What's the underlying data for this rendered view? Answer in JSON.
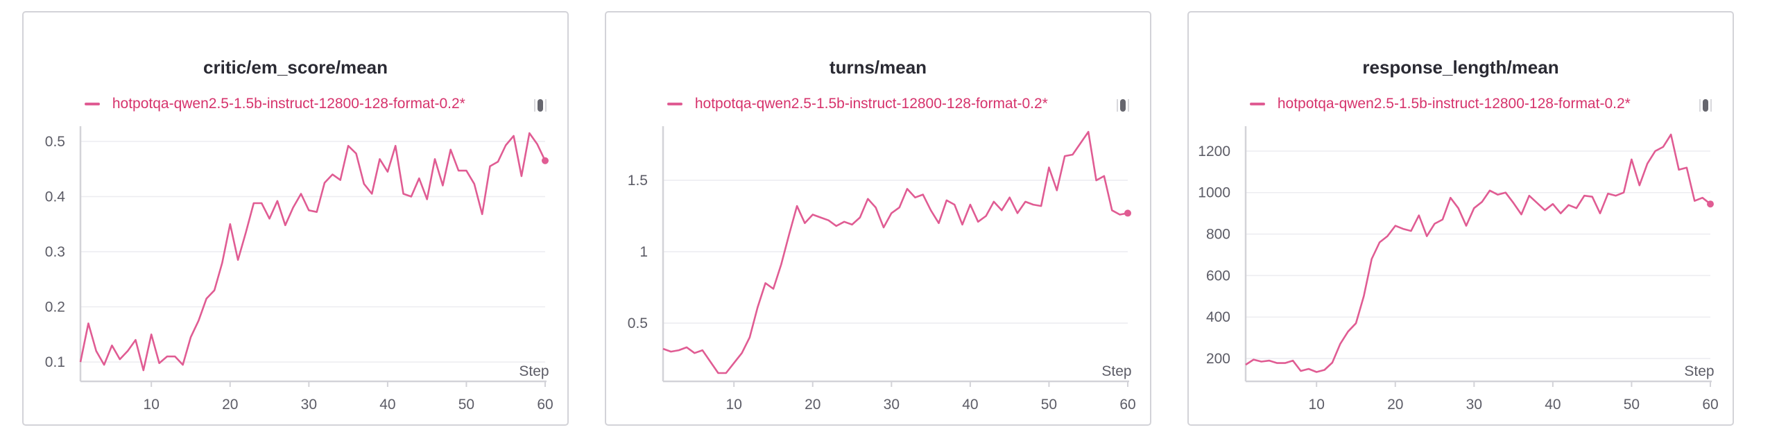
{
  "colors": {
    "series": "#e05c93",
    "legend_text": "#d6336c",
    "grid": "#ececf0",
    "axis": "#d3d3d8"
  },
  "panels": [
    {
      "title": "critic/em_score/mean",
      "legend": "hotpotqa-qwen2.5-1.5b-instruct-12800-128-format-0.2*",
      "xlabel": "Step"
    },
    {
      "title": "turns/mean",
      "legend": "hotpotqa-qwen2.5-1.5b-instruct-12800-128-format-0.2*",
      "xlabel": "Step"
    },
    {
      "title": "response_length/mean",
      "legend": "hotpotqa-qwen2.5-1.5b-instruct-12800-128-format-0.2*",
      "xlabel": "Step"
    }
  ],
  "chart_data": [
    {
      "type": "line",
      "title": "critic/em_score/mean",
      "xlabel": "Step",
      "ylabel": "",
      "xlim": [
        1,
        60
      ],
      "ylim": [
        0.08,
        0.52
      ],
      "xticks": [
        10,
        20,
        30,
        40,
        50,
        60
      ],
      "yticks": [
        0.1,
        0.2,
        0.3,
        0.4,
        0.5
      ],
      "ytick_labels": [
        "0.1",
        "0.2",
        "0.3",
        "0.4",
        "0.5"
      ],
      "grid": true,
      "legend": "top-left",
      "series": [
        {
          "name": "hotpotqa-qwen2.5-1.5b-instruct-12800-128-format-0.2*",
          "x": [
            1,
            2,
            3,
            4,
            5,
            6,
            7,
            8,
            9,
            10,
            11,
            12,
            13,
            14,
            15,
            16,
            17,
            18,
            19,
            20,
            21,
            22,
            23,
            24,
            25,
            26,
            27,
            28,
            29,
            30,
            31,
            32,
            33,
            34,
            35,
            36,
            37,
            38,
            39,
            40,
            41,
            42,
            43,
            44,
            45,
            46,
            47,
            48,
            49,
            50,
            51,
            52,
            53,
            54,
            55,
            56,
            57,
            58,
            59,
            60
          ],
          "y": [
            0.1,
            0.17,
            0.12,
            0.095,
            0.13,
            0.105,
            0.12,
            0.14,
            0.085,
            0.15,
            0.098,
            0.11,
            0.11,
            0.095,
            0.145,
            0.175,
            0.215,
            0.23,
            0.28,
            0.35,
            0.285,
            0.335,
            0.388,
            0.388,
            0.36,
            0.392,
            0.348,
            0.38,
            0.405,
            0.375,
            0.372,
            0.425,
            0.44,
            0.43,
            0.492,
            0.478,
            0.423,
            0.405,
            0.468,
            0.445,
            0.492,
            0.405,
            0.4,
            0.433,
            0.395,
            0.468,
            0.42,
            0.485,
            0.447,
            0.447,
            0.423,
            0.368,
            0.455,
            0.463,
            0.493,
            0.51,
            0.437,
            0.515,
            0.495,
            0.465
          ]
        }
      ]
    },
    {
      "type": "line",
      "title": "turns/mean",
      "xlabel": "Step",
      "ylabel": "",
      "xlim": [
        1,
        60
      ],
      "ylim": [
        0.15,
        1.85
      ],
      "xticks": [
        10,
        20,
        30,
        40,
        50,
        60
      ],
      "yticks": [
        0.5,
        1,
        1.5
      ],
      "ytick_labels": [
        "0.5",
        "1",
        "1.5"
      ],
      "grid": true,
      "legend": "top-left",
      "series": [
        {
          "name": "hotpotqa-qwen2.5-1.5b-instruct-12800-128-format-0.2*",
          "x": [
            1,
            2,
            3,
            4,
            5,
            6,
            7,
            8,
            9,
            10,
            11,
            12,
            13,
            14,
            15,
            16,
            17,
            18,
            19,
            20,
            21,
            22,
            23,
            24,
            25,
            26,
            27,
            28,
            29,
            30,
            31,
            32,
            33,
            34,
            35,
            36,
            37,
            38,
            39,
            40,
            41,
            42,
            43,
            44,
            45,
            46,
            47,
            48,
            49,
            50,
            51,
            52,
            53,
            54,
            55,
            56,
            57,
            58,
            59,
            60
          ],
          "y": [
            0.32,
            0.3,
            0.31,
            0.33,
            0.29,
            0.31,
            0.23,
            0.15,
            0.15,
            0.22,
            0.29,
            0.4,
            0.61,
            0.78,
            0.74,
            0.91,
            1.12,
            1.32,
            1.2,
            1.26,
            1.24,
            1.22,
            1.18,
            1.21,
            1.19,
            1.24,
            1.37,
            1.31,
            1.17,
            1.27,
            1.31,
            1.44,
            1.38,
            1.4,
            1.29,
            1.2,
            1.36,
            1.33,
            1.19,
            1.33,
            1.21,
            1.25,
            1.35,
            1.29,
            1.38,
            1.27,
            1.35,
            1.33,
            1.32,
            1.59,
            1.43,
            1.67,
            1.68,
            1.76,
            1.84,
            1.5,
            1.53,
            1.29,
            1.26,
            1.27
          ]
        }
      ]
    },
    {
      "type": "line",
      "title": "response_length/mean",
      "xlabel": "Step",
      "ylabel": "",
      "xlim": [
        1,
        60
      ],
      "ylim": [
        130,
        1300
      ],
      "xticks": [
        10,
        20,
        30,
        40,
        50,
        60
      ],
      "yticks": [
        200,
        400,
        600,
        800,
        1000,
        1200
      ],
      "ytick_labels": [
        "200",
        "400",
        "600",
        "800",
        "1000",
        "1200"
      ],
      "grid": true,
      "legend": "top-left",
      "series": [
        {
          "name": "hotpotqa-qwen2.5-1.5b-instruct-12800-128-format-0.2*",
          "x": [
            1,
            2,
            3,
            4,
            5,
            6,
            7,
            8,
            9,
            10,
            11,
            12,
            13,
            14,
            15,
            16,
            17,
            18,
            19,
            20,
            21,
            22,
            23,
            24,
            25,
            26,
            27,
            28,
            29,
            30,
            31,
            32,
            33,
            34,
            35,
            36,
            37,
            38,
            39,
            40,
            41,
            42,
            43,
            44,
            45,
            46,
            47,
            48,
            49,
            50,
            51,
            52,
            53,
            54,
            55,
            56,
            57,
            58,
            59,
            60
          ],
          "y": [
            170,
            195,
            185,
            190,
            178,
            178,
            190,
            140,
            150,
            135,
            145,
            180,
            270,
            330,
            370,
            500,
            680,
            760,
            790,
            840,
            825,
            815,
            890,
            790,
            850,
            870,
            975,
            925,
            840,
            925,
            955,
            1010,
            990,
            1000,
            950,
            895,
            985,
            950,
            915,
            945,
            900,
            940,
            925,
            985,
            980,
            900,
            995,
            985,
            1000,
            1160,
            1035,
            1140,
            1200,
            1220,
            1280,
            1110,
            1120,
            960,
            975,
            945
          ]
        }
      ]
    }
  ]
}
